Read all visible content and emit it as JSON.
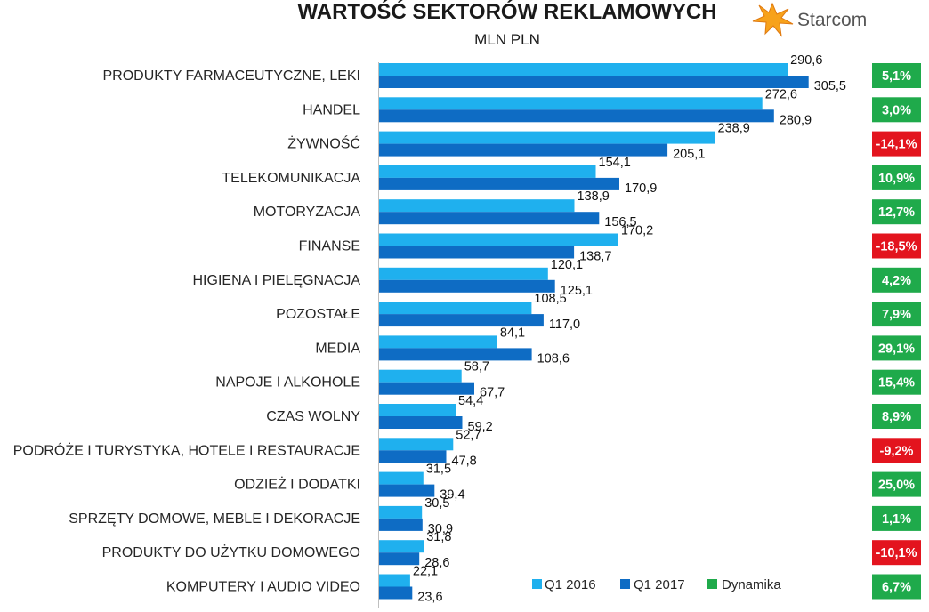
{
  "chart_data": {
    "type": "bar",
    "orientation": "horizontal",
    "title": "WARTOŚĆ SEKTORÓW REKLAMOWYCH",
    "subtitle": "MLN PLN",
    "categories": [
      "PRODUKTY FARMACEUTYCZNE, LEKI",
      "HANDEL",
      "ŻYWNOŚĆ",
      "TELEKOMUNIKACJA",
      "MOTORYZACJA",
      "FINANSE",
      "HIGIENA I PIELĘGNACJA",
      "POZOSTAŁE",
      "MEDIA",
      "NAPOJE I ALKOHOLE",
      "CZAS WOLNY",
      "PODRÓŻE I TURYSTYKA, HOTELE I RESTAURACJE",
      "ODZIEŻ I DODATKI",
      "SPRZĘTY DOMOWE, MEBLE I DEKORACJE",
      "PRODUKTY DO UŻYTKU DOMOWEGO",
      "KOMPUTERY I AUDIO VIDEO"
    ],
    "series": [
      {
        "name": "Q1 2016",
        "color": "#1fb0ee",
        "values": [
          290.6,
          272.6,
          238.9,
          154.1,
          138.9,
          170.2,
          120.1,
          108.5,
          84.1,
          58.7,
          54.4,
          52.7,
          31.5,
          30.5,
          31.8,
          22.1
        ],
        "labels": [
          "290,6",
          "272,6",
          "238,9",
          "154,1",
          "138,9",
          "170,2",
          "120,1",
          "108,5",
          "84,1",
          "58,7",
          "54,4",
          "52,7",
          "31,5",
          "30,5",
          "31,8",
          "22,1"
        ]
      },
      {
        "name": "Q1 2017",
        "color": "#0e6cc4",
        "values": [
          305.5,
          280.9,
          205.1,
          170.9,
          156.5,
          138.7,
          125.1,
          117.0,
          108.6,
          67.7,
          59.2,
          47.8,
          39.4,
          30.9,
          28.6,
          23.6
        ],
        "labels": [
          "305,5",
          "280,9",
          "205,1",
          "170,9",
          "156,5",
          "138,7",
          "125,1",
          "117,0",
          "108,6",
          "67,7",
          "59,2",
          "47,8",
          "39,4",
          "30,9",
          "28,6",
          "23,6"
        ]
      }
    ],
    "dynamics": {
      "name": "Dynamika",
      "values": [
        "5,1%",
        "3,0%",
        "-14,1%",
        "10,9%",
        "12,7%",
        "-18,5%",
        "4,2%",
        "7,9%",
        "29,1%",
        "15,4%",
        "8,9%",
        "-9,2%",
        "25,0%",
        "1,1%",
        "-10,1%",
        "6,7%"
      ],
      "positive_color": "#1faa4b",
      "negative_color": "#e3141e"
    },
    "xlim": [
      0,
      320
    ],
    "grid": false,
    "legend": "bottom-center",
    "logo": "Starcom"
  }
}
